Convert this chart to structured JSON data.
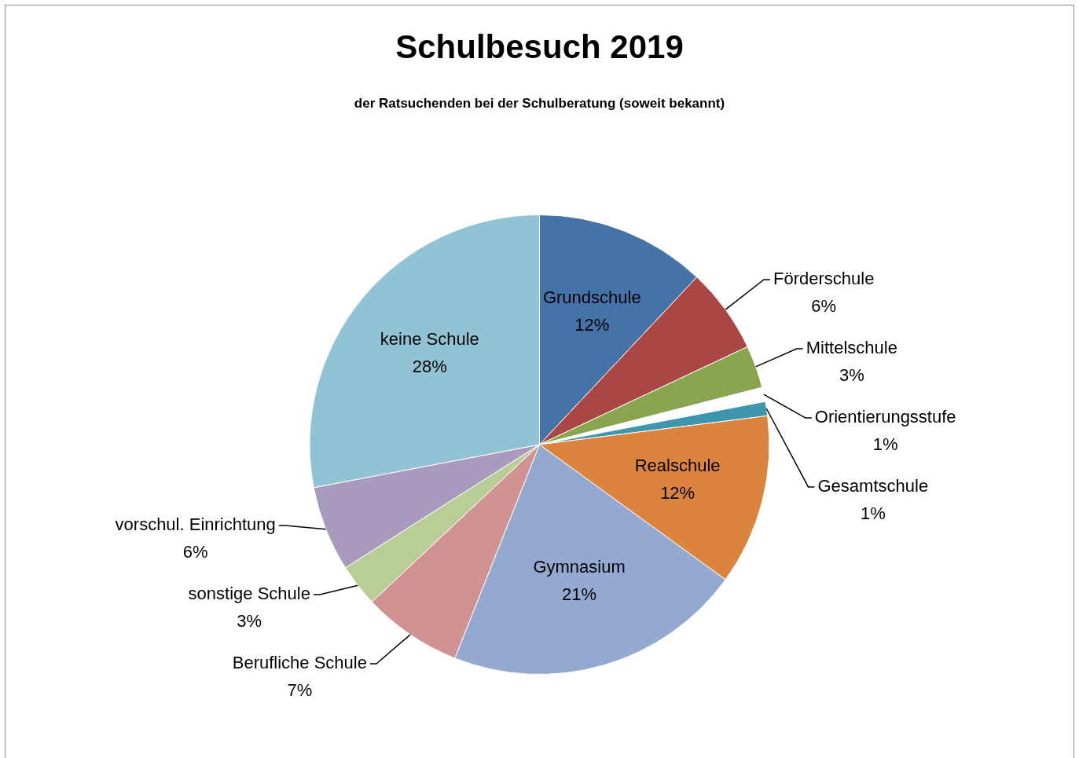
{
  "chart_data": {
    "type": "pie",
    "title": "Schulbesuch 2019",
    "subtitle": "der Ratsuchenden bei der Schulberatung (soweit bekannt)",
    "categories": [
      "Grundschule",
      "Förderschule",
      "Mittelschule",
      "Orientierungsstufe",
      "Gesamtschule",
      "Realschule",
      "Gymnasium",
      "Berufliche Schule",
      "sonstige Schule",
      "vorschul. Einrichtung",
      "keine Schule"
    ],
    "values": [
      12,
      6,
      3,
      1,
      1,
      12,
      21,
      7,
      3,
      6,
      28
    ],
    "value_labels": [
      "12%",
      "6%",
      "3%",
      "1%",
      "1%",
      "12%",
      "21%",
      "7%",
      "3%",
      "6%",
      "28%"
    ],
    "colors": [
      "#4572a7",
      "#aa4643",
      "#89a54e",
      "#ffffff",
      "#3d96ae",
      "#db843d",
      "#93a9cf",
      "#d19392",
      "#b9cd96",
      "#a99bbd",
      "#92c3d4"
    ],
    "legend": false
  }
}
